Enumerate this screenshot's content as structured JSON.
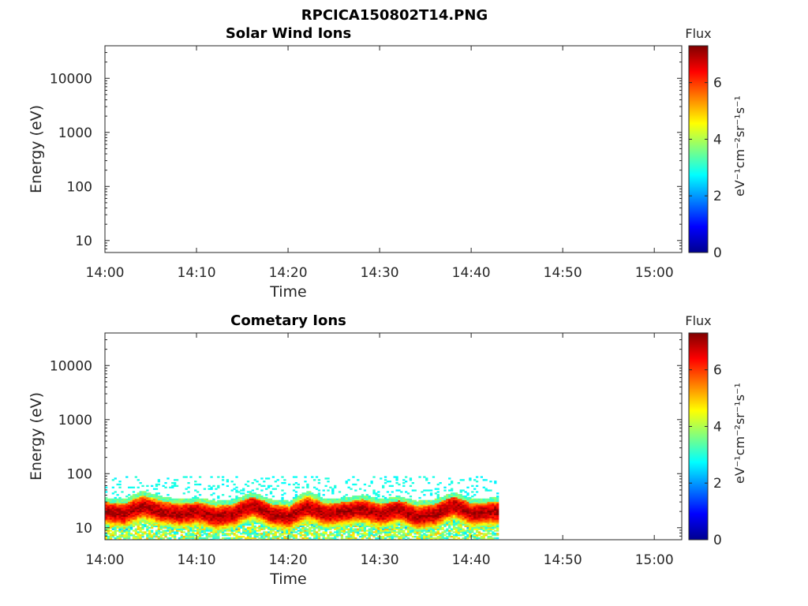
{
  "figure_title": "RPCICA150802T14.PNG",
  "chart_data": [
    {
      "type": "heatmap",
      "title": "Solar Wind Ions",
      "xlabel": "Time",
      "ylabel": "Energy (eV)",
      "x_ticks": [
        "14:00",
        "14:10",
        "14:20",
        "14:30",
        "14:40",
        "14:50",
        "15:00"
      ],
      "xlim": [
        "14:00",
        "15:03"
      ],
      "y_scale": "log",
      "y_ticks": [
        10,
        100,
        1000,
        10000
      ],
      "y_tick_labels": [
        "10",
        "100",
        "1000",
        "10000"
      ],
      "ylim": [
        6,
        40000
      ],
      "colorbar": {
        "label": "Flux",
        "unit": "eV⁻¹cm⁻²sr⁻¹s⁻¹",
        "range": [
          0,
          7.3
        ],
        "ticks": [
          "0",
          "2",
          "4",
          "6"
        ],
        "colormap": "jet"
      },
      "data_coverage": null,
      "band": []
    },
    {
      "type": "heatmap",
      "title": "Cometary Ions",
      "xlabel": "Time",
      "ylabel": "Energy (eV)",
      "x_ticks": [
        "14:00",
        "14:10",
        "14:20",
        "14:30",
        "14:40",
        "14:50",
        "15:00"
      ],
      "xlim": [
        "14:00",
        "15:03"
      ],
      "y_scale": "log",
      "y_ticks": [
        10,
        100,
        1000,
        10000
      ],
      "y_tick_labels": [
        "10",
        "100",
        "1000",
        "10000"
      ],
      "ylim": [
        6,
        40000
      ],
      "colorbar": {
        "label": "Flux",
        "unit": "eV⁻¹cm⁻²sr⁻¹s⁻¹",
        "range": [
          0,
          7.3
        ],
        "ticks": [
          "0",
          "2",
          "4",
          "6"
        ],
        "colormap": "jet"
      },
      "data_coverage": [
        "14:00",
        "14:43"
      ],
      "band": [
        {
          "time": "14:00",
          "energy_peak": 20,
          "energy_top": 30
        },
        {
          "time": "14:02",
          "energy_peak": 18,
          "energy_top": 28
        },
        {
          "time": "14:04",
          "energy_peak": 25,
          "energy_top": 40
        },
        {
          "time": "14:06",
          "energy_peak": 20,
          "energy_top": 32
        },
        {
          "time": "14:08",
          "energy_peak": 18,
          "energy_top": 28
        },
        {
          "time": "14:10",
          "energy_peak": 20,
          "energy_top": 30
        },
        {
          "time": "14:12",
          "energy_peak": 16,
          "energy_top": 26
        },
        {
          "time": "14:14",
          "energy_peak": 18,
          "energy_top": 28
        },
        {
          "time": "14:16",
          "energy_peak": 26,
          "energy_top": 38
        },
        {
          "time": "14:18",
          "energy_peak": 18,
          "energy_top": 28
        },
        {
          "time": "14:20",
          "energy_peak": 16,
          "energy_top": 26
        },
        {
          "time": "14:22",
          "energy_peak": 24,
          "energy_top": 40
        },
        {
          "time": "14:24",
          "energy_peak": 18,
          "energy_top": 28
        },
        {
          "time": "14:26",
          "energy_peak": 20,
          "energy_top": 30
        },
        {
          "time": "14:28",
          "energy_peak": 22,
          "energy_top": 34
        },
        {
          "time": "14:30",
          "energy_peak": 18,
          "energy_top": 28
        },
        {
          "time": "14:32",
          "energy_peak": 22,
          "energy_top": 32
        },
        {
          "time": "14:34",
          "energy_peak": 16,
          "energy_top": 26
        },
        {
          "time": "14:36",
          "energy_peak": 18,
          "energy_top": 28
        },
        {
          "time": "14:38",
          "energy_peak": 26,
          "energy_top": 38
        },
        {
          "time": "14:40",
          "energy_peak": 18,
          "energy_top": 28
        },
        {
          "time": "14:42",
          "energy_peak": 20,
          "energy_top": 30
        }
      ]
    }
  ]
}
